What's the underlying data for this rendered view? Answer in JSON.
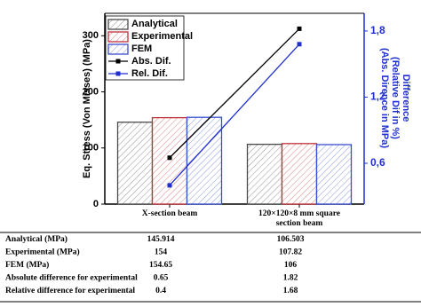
{
  "chart_data": {
    "type": "bar",
    "categories": [
      "X-section beam",
      "120×120×8 mm square section beam"
    ],
    "ylabel": "Eq. Stress (Von Misses) (MPa)",
    "y2label": [
      "Difference",
      "(Relative Dif in %)",
      "(Abs. Dirence in MPa)"
    ],
    "ylim": [
      0,
      340
    ],
    "yticks": [
      0,
      100,
      200,
      300
    ],
    "y2lim": [
      0.23,
      1.96
    ],
    "y2ticks": [
      {
        "value": 0.6,
        "label": "0,6"
      },
      {
        "value": 1.2,
        "label": "1,2"
      },
      {
        "value": 1.8,
        "label": "1,8"
      }
    ],
    "y2color": "#1f2fd0",
    "series": [
      {
        "name": "Analytical",
        "type": "bar",
        "color": "#4a4a4a",
        "values": [
          145.914,
          106.503
        ]
      },
      {
        "name": "Experimental",
        "type": "bar",
        "color": "#c0303a",
        "values": [
          154,
          107.82
        ]
      },
      {
        "name": "FEM",
        "type": "bar",
        "color": "#3a4fd0",
        "values": [
          154.65,
          106
        ]
      },
      {
        "name": "Abs. Dif.",
        "type": "line",
        "axis": "y2",
        "color": "#000000",
        "values": [
          0.65,
          1.82
        ]
      },
      {
        "name": "Rel. Dif.",
        "type": "line",
        "axis": "y2",
        "color": "#1f2fd0",
        "values": [
          0.4,
          1.68
        ]
      }
    ]
  },
  "table": {
    "rows": [
      [
        "Analytical (MPa)",
        "145.914",
        "106.503"
      ],
      [
        "Experimental (MPa)",
        "154",
        "107.82"
      ],
      [
        "FEM (MPa)",
        "154.65",
        "106"
      ],
      [
        "Absolute difference for experimental",
        "0.65",
        "1.82"
      ],
      [
        "Relative difference for experimental",
        "0.4",
        "1.68"
      ]
    ]
  }
}
